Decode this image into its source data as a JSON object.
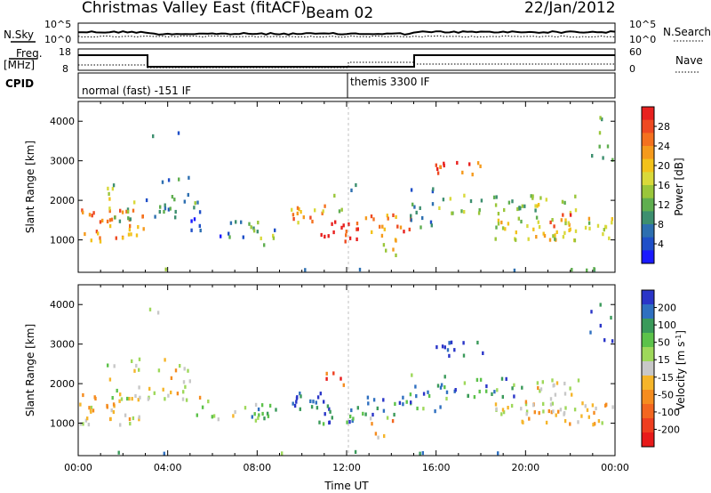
{
  "header": {
    "station": "Christmas Valley East (fitACF)",
    "beam": "Beam 02",
    "date": "22/Jan/2012"
  },
  "noise_panel": {
    "left_label": "N.Sky",
    "right_label": "N.Search",
    "ticks": [
      "10^5",
      "10^0"
    ]
  },
  "freq_panel": {
    "left_label_1": "Freq.",
    "left_label_2": "[MHz]",
    "right_label": "Nave",
    "left_ticks": [
      "18",
      "8"
    ],
    "right_ticks": [
      "60",
      "0"
    ]
  },
  "cpid_panel": {
    "label": "CPID",
    "modes": [
      "normal (fast) -151 IF",
      "themis 3300 IF"
    ]
  },
  "axes": {
    "x_label": "Time UT",
    "y_label": "Slant Range [km]",
    "x_ticks": [
      "00:00",
      "04:00",
      "08:00",
      "12:00",
      "16:00",
      "20:00",
      "00:00"
    ],
    "y_ticks": [
      "1000",
      "2000",
      "3000",
      "4000"
    ]
  },
  "chart_data": [
    {
      "type": "heatmap",
      "name": "power",
      "x_range_hours": [
        0,
        24
      ],
      "y_range_km": [
        180,
        4500
      ],
      "colorbar": {
        "label": "Power [dB]",
        "ticks": [
          "4",
          "8",
          "12",
          "16",
          "20",
          "24",
          "28"
        ],
        "colors": [
          "#1a1aff",
          "#1f4fc8",
          "#2d6fb0",
          "#3d8f6f",
          "#5fae4f",
          "#9ac63a",
          "#d9d93a",
          "#f2c21b",
          "#f59a1c",
          "#f4711f",
          "#ee4a22",
          "#e8211f"
        ]
      }
    },
    {
      "type": "heatmap",
      "name": "velocity",
      "x_range_hours": [
        0,
        24
      ],
      "y_range_km": [
        180,
        4500
      ],
      "colorbar": {
        "label": "Velocity [m s^-1]",
        "ticks": [
          "200",
          "100",
          "50",
          "15",
          "-15",
          "-50",
          "-100",
          "-200"
        ],
        "colors": [
          "#2a35c8",
          "#2f70c0",
          "#3a9a5a",
          "#5cc24a",
          "#9ed85a",
          "#c8c8c8",
          "#f5b52a",
          "#f58c1f",
          "#f3661f",
          "#ee3e1f",
          "#e81a1a"
        ]
      }
    }
  ]
}
